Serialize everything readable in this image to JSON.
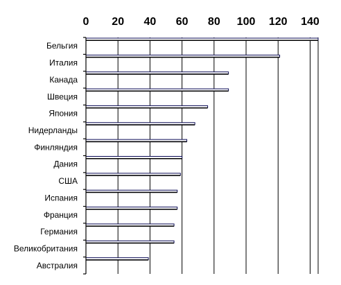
{
  "chart_data": {
    "type": "bar",
    "orientation": "horizontal",
    "x_axis_position": "top",
    "xlim": [
      0,
      145
    ],
    "x_ticks": [
      0,
      20,
      40,
      60,
      80,
      100,
      120,
      140
    ],
    "grid": true,
    "legend": "none",
    "title": "",
    "xlabel": "",
    "ylabel": "",
    "categories": [
      "Бельгия",
      "Италия",
      "Канада",
      "Швеция",
      "Япония",
      "Нидерланды",
      "Финляндия",
      "Дания",
      "США",
      "Испания",
      "Франция",
      "Германия",
      "Великобритания",
      "Австралия"
    ],
    "values": [
      145,
      121,
      89,
      89,
      76,
      68,
      63,
      60,
      59,
      57,
      57,
      55,
      55,
      39
    ],
    "colors": {
      "bar_fill": "#ffffff",
      "bar_edge": "#0a0a55",
      "grid": "#000000"
    }
  }
}
